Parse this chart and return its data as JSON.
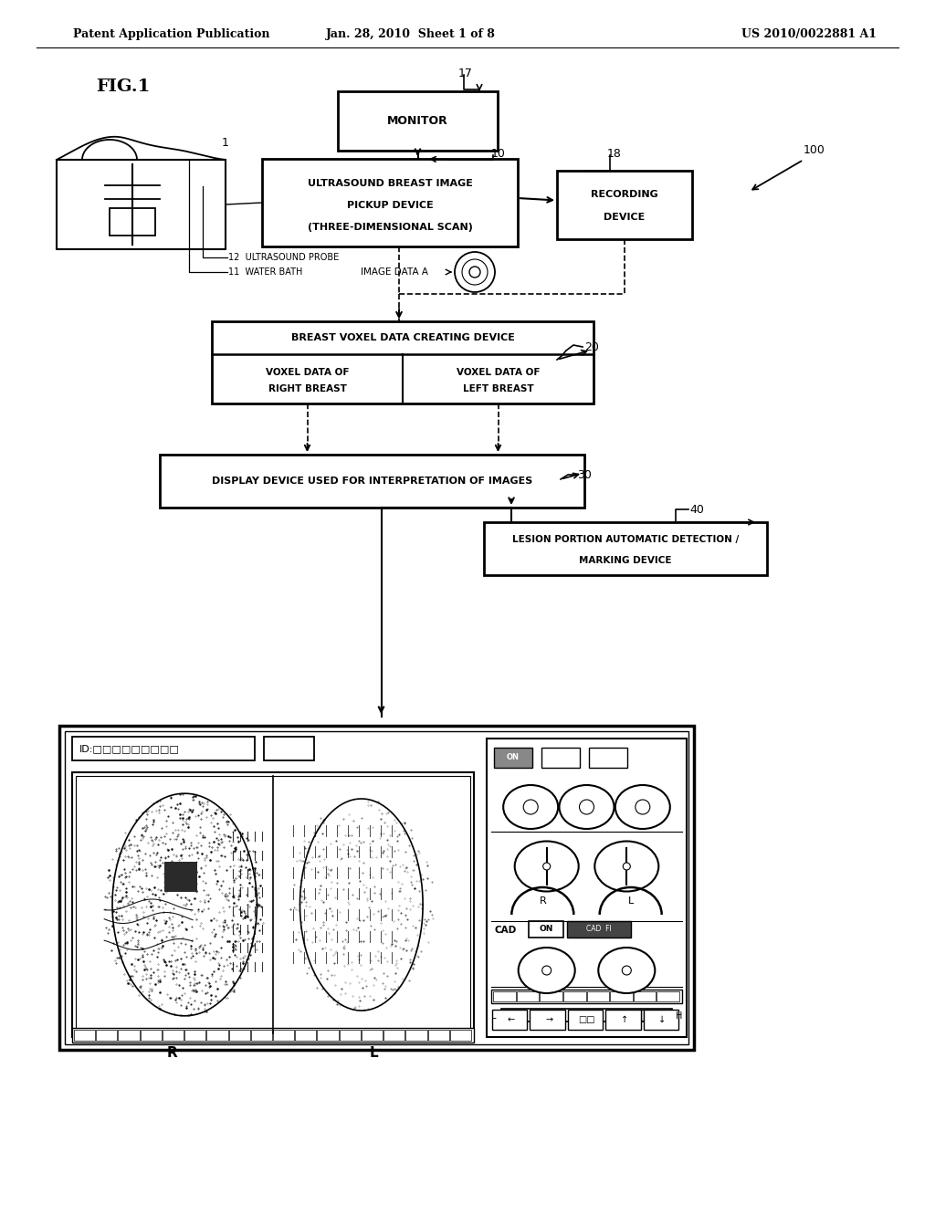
{
  "bg_color": "#ffffff",
  "header_left": "Patent Application Publication",
  "header_center": "Jan. 28, 2010  Sheet 1 of 8",
  "header_right": "US 2010/0022881 A1",
  "fig_label": "FIG.1"
}
